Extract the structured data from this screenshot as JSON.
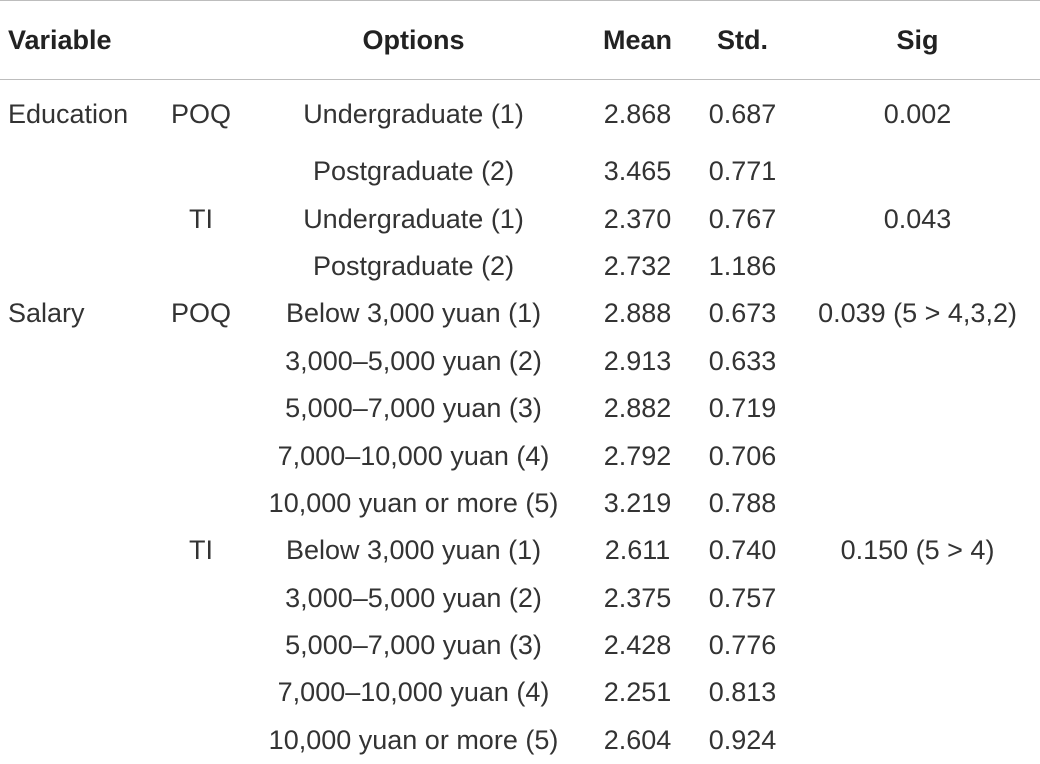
{
  "headers": {
    "variable": "Variable",
    "options": "Options",
    "mean": "Mean",
    "std": "Std.",
    "sig": "Sig"
  },
  "rows": [
    {
      "variable": "Education",
      "group": "POQ",
      "option": "Undergraduate (1)",
      "mean": "2.868",
      "std": "0.687",
      "sig": "0.002"
    },
    {
      "variable": "",
      "group": "",
      "option": "Postgraduate (2)",
      "mean": "3.465",
      "std": "0.771",
      "sig": ""
    },
    {
      "variable": "",
      "group": "TI",
      "option": "Undergraduate (1)",
      "mean": "2.370",
      "std": "0.767",
      "sig": "0.043"
    },
    {
      "variable": "",
      "group": "",
      "option": "Postgraduate (2)",
      "mean": "2.732",
      "std": "1.186",
      "sig": ""
    },
    {
      "variable": "Salary",
      "group": "POQ",
      "option": "Below 3,000 yuan (1)",
      "mean": "2.888",
      "std": "0.673",
      "sig": "0.039 (5 > 4,3,2)"
    },
    {
      "variable": "",
      "group": "",
      "option": "3,000–5,000 yuan (2)",
      "mean": "2.913",
      "std": "0.633",
      "sig": ""
    },
    {
      "variable": "",
      "group": "",
      "option": "5,000–7,000 yuan (3)",
      "mean": "2.882",
      "std": "0.719",
      "sig": ""
    },
    {
      "variable": "",
      "group": "",
      "option": "7,000–10,000 yuan (4)",
      "mean": "2.792",
      "std": "0.706",
      "sig": ""
    },
    {
      "variable": "",
      "group": "",
      "option": "10,000 yuan or more (5)",
      "mean": "3.219",
      "std": "0.788",
      "sig": ""
    },
    {
      "variable": "",
      "group": "TI",
      "option": "Below 3,000 yuan (1)",
      "mean": "2.611",
      "std": "0.740",
      "sig": "0.150 (5 > 4)"
    },
    {
      "variable": "",
      "group": "",
      "option": "3,000–5,000 yuan (2)",
      "mean": "2.375",
      "std": "0.757",
      "sig": ""
    },
    {
      "variable": "",
      "group": "",
      "option": "5,000–7,000 yuan (3)",
      "mean": "2.428",
      "std": "0.776",
      "sig": ""
    },
    {
      "variable": "",
      "group": "",
      "option": "7,000–10,000 yuan (4)",
      "mean": "2.251",
      "std": "0.813",
      "sig": ""
    },
    {
      "variable": "",
      "group": "",
      "option": "10,000 yuan or more (5)",
      "mean": "2.604",
      "std": "0.924",
      "sig": ""
    }
  ]
}
